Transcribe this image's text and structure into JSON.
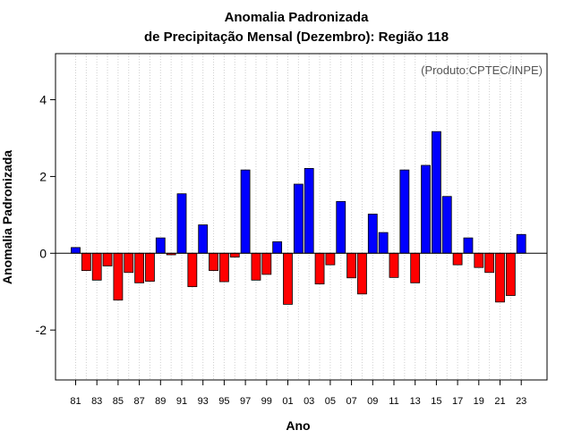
{
  "chart_data": {
    "type": "bar",
    "title_line1": "Anomalia Padronizada",
    "title_line2": "de Precipitação Mensal (Dezembro): Região 118",
    "xlabel": "Ano",
    "ylabel": "Anomalia Padronizada",
    "credit": "(Produto:CPTEC/INPE)",
    "ylim": [
      -3.3,
      5.2
    ],
    "y_ticks": [
      -2,
      0,
      2,
      4
    ],
    "y_tick_labels": [
      "-2",
      "0",
      "2",
      "4"
    ],
    "grid": true,
    "positive_color": "#0000ff",
    "negative_color": "#ff0000",
    "categories": [
      "81",
      "82",
      "83",
      "84",
      "85",
      "86",
      "87",
      "88",
      "89",
      "90",
      "91",
      "92",
      "93",
      "94",
      "95",
      "96",
      "97",
      "98",
      "99",
      "00",
      "01",
      "02",
      "03",
      "04",
      "05",
      "06",
      "07",
      "08",
      "09",
      "10",
      "11",
      "12",
      "13",
      "14",
      "15",
      "16",
      "17",
      "18",
      "19",
      "20",
      "21",
      "22",
      "23"
    ],
    "x_tick_labels": [
      "81",
      "83",
      "85",
      "87",
      "89",
      "91",
      "93",
      "95",
      "97",
      "99",
      "01",
      "03",
      "05",
      "07",
      "09",
      "11",
      "13",
      "15",
      "17",
      "19",
      "21",
      "23"
    ],
    "values": [
      0.15,
      -0.45,
      -0.7,
      -0.33,
      -1.22,
      -0.5,
      -0.77,
      -0.73,
      0.4,
      -0.04,
      1.55,
      -0.87,
      0.74,
      -0.45,
      -0.74,
      -0.1,
      2.17,
      -0.7,
      -0.55,
      0.3,
      -1.33,
      1.8,
      2.21,
      -0.8,
      -0.3,
      1.35,
      -0.64,
      -1.06,
      1.02,
      0.54,
      -0.63,
      2.17,
      -0.77,
      2.29,
      3.17,
      1.48,
      -0.3,
      0.4,
      -0.37,
      -0.5,
      -1.27,
      -1.1,
      0.49
    ]
  }
}
